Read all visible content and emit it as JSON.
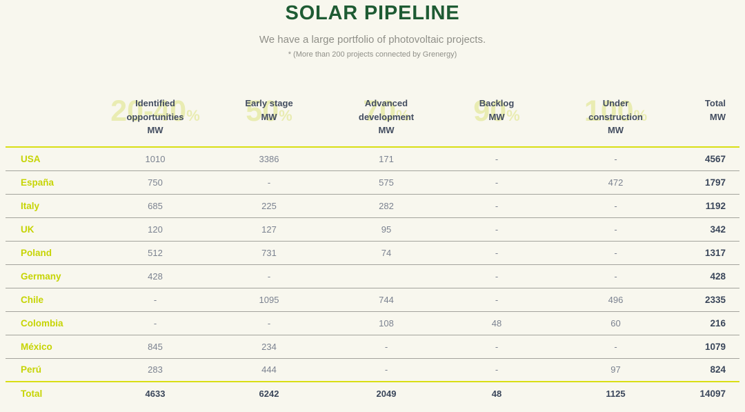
{
  "header": {
    "title": "SOLAR PIPELINE",
    "subtitle": "We have a large portfolio of photovoltaic projects.",
    "note": "* (More than 200 projects connected by Grenergy)"
  },
  "colors": {
    "background": "#f8f7ee",
    "title_green": "#1e5b33",
    "accent_lime": "#c6d404",
    "lime_rule": "#d9de14",
    "watermark": "#e9ecb2",
    "header_text": "#434d60",
    "value_gray": "#7b8290",
    "total_navy": "#3a465a"
  },
  "chart_data": {
    "type": "table",
    "title": "SOLAR PIPELINE",
    "subtitle": "We have a large portfolio of photovoltaic projects.",
    "note": "* (More than 200 projects connected by Grenergy)",
    "columns": [
      {
        "stage_pct": "20-40",
        "pct_sign": "%",
        "label": "Identified opportunities",
        "unit": "MW"
      },
      {
        "stage_pct": "50",
        "pct_sign": "%",
        "label": "Early stage",
        "unit": "MW"
      },
      {
        "stage_pct": "70",
        "pct_sign": "%",
        "label": "Advanced development",
        "unit": "MW"
      },
      {
        "stage_pct": "90",
        "pct_sign": "%",
        "label": "Backlog",
        "unit": "MW"
      },
      {
        "stage_pct": "100",
        "pct_sign": "%",
        "label": "Under construction",
        "unit": "MW"
      },
      {
        "stage_pct": "",
        "pct_sign": "",
        "label": "Total",
        "unit": "MW"
      }
    ],
    "rows": [
      {
        "country": "USA",
        "values": [
          "1010",
          "3386",
          "171",
          "-",
          "-"
        ],
        "total": "4567"
      },
      {
        "country": "España",
        "values": [
          "750",
          "-",
          "575",
          "-",
          "472"
        ],
        "total": "1797"
      },
      {
        "country": "Italy",
        "values": [
          "685",
          "225",
          "282",
          "-",
          "-"
        ],
        "total": "1192"
      },
      {
        "country": "UK",
        "values": [
          "120",
          "127",
          "95",
          "-",
          "-"
        ],
        "total": "342"
      },
      {
        "country": "Poland",
        "values": [
          "512",
          "731",
          "74",
          "-",
          "-"
        ],
        "total": "1317"
      },
      {
        "country": "Germany",
        "values": [
          "428",
          "-",
          "",
          "-",
          "-"
        ],
        "total": "428"
      },
      {
        "country": "Chile",
        "values": [
          "-",
          "1095",
          "744",
          "-",
          "496"
        ],
        "total": "2335"
      },
      {
        "country": "Colombia",
        "values": [
          "-",
          "-",
          "108",
          "48",
          "60"
        ],
        "total": "216"
      },
      {
        "country": "México",
        "values": [
          "845",
          "234",
          "-",
          "-",
          "-"
        ],
        "total": "1079"
      },
      {
        "country": "Perú",
        "values": [
          "283",
          "444",
          "-",
          "-",
          "97"
        ],
        "total": "824"
      }
    ],
    "total_row": {
      "label": "Total",
      "values": [
        "4633",
        "6242",
        "2049",
        "48",
        "1125"
      ],
      "total": "14097"
    }
  }
}
